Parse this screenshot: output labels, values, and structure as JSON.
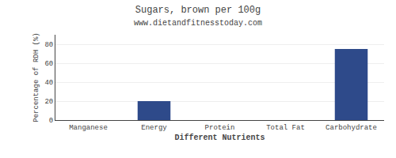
{
  "chart_data": {
    "type": "bar",
    "title": "Sugars, brown per 100g",
    "subtitle": "www.dietandfitnesstoday.com",
    "categories": [
      "Manganese",
      "Energy",
      "Protein",
      "Total Fat",
      "Carbohydrate"
    ],
    "values": [
      0,
      20,
      0,
      0,
      75
    ],
    "color": "#2e4a8a",
    "xlabel": "Different Nutrients",
    "ylabel": "Percentage of RDH (%)",
    "ylim": [
      0,
      90
    ],
    "yticks": [
      0,
      20,
      40,
      60,
      80
    ],
    "grid": true
  }
}
